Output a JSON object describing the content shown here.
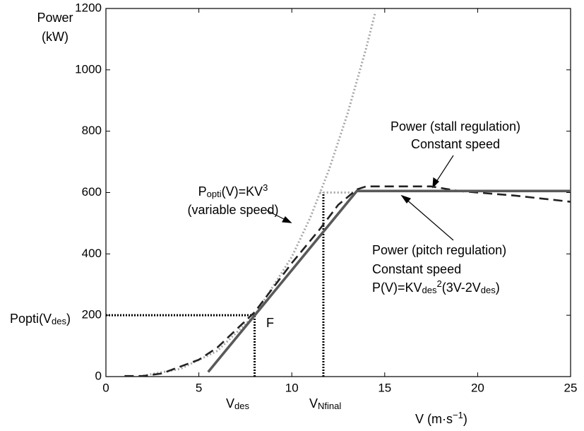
{
  "chart_data": {
    "type": "line",
    "ylabel": [
      "Power",
      "(kW)"
    ],
    "xlabel": [
      {
        "text": "V (m·s"
      },
      {
        "text": "−1",
        "shift": "sup"
      },
      {
        "text": ")"
      }
    ],
    "xlim": [
      0,
      25
    ],
    "xticks": [
      0,
      5,
      10,
      15,
      20,
      25
    ],
    "ylim": [
      0,
      1200
    ],
    "yticks": [
      0,
      200,
      400,
      600,
      800,
      1000,
      1200
    ],
    "series": [
      {
        "color": "#a6a6a6",
        "style": "dotted",
        "x": [
          2,
          4,
          6,
          8,
          10,
          11,
          12,
          13,
          14,
          14.5
        ],
        "values": [
          3,
          25,
          84,
          200,
          390,
          519,
          674,
          857,
          1070,
          1189
        ]
      },
      {
        "color": "#a6a6a6",
        "style": "dotted",
        "x": [
          11.5,
          13.5
        ],
        "values": [
          600,
          600
        ]
      },
      {
        "color": "#222222",
        "style": "dashed",
        "x": [
          1,
          2,
          3,
          5,
          6,
          8,
          10,
          11.5,
          12.5,
          13.5,
          14,
          17.5,
          19,
          22,
          25
        ],
        "values": [
          2,
          2,
          10,
          55,
          95,
          210,
          370,
          480,
          560,
          610,
          620,
          620,
          605,
          590,
          570
        ]
      },
      {
        "color": "#595959",
        "style": "solid",
        "x": [
          5.5,
          13.5,
          25
        ],
        "values": [
          15,
          605,
          605
        ]
      }
    ],
    "reference_lines": [
      {
        "color": "#000000",
        "x": [
          0,
          8
        ],
        "values": [
          200,
          200
        ]
      },
      {
        "color": "#000000",
        "x": [
          8,
          8
        ],
        "values": [
          0,
          200
        ]
      },
      {
        "color": "#000000",
        "x": [
          11.7,
          11.7
        ],
        "values": [
          0,
          600
        ]
      }
    ],
    "annotations": [
      [
        {
          "text": "P"
        },
        {
          "text": "opti",
          "shift": "sub"
        },
        {
          "text": "(V)=KV"
        },
        {
          "text": "3",
          "shift": "sup"
        }
      ],
      [
        {
          "text": "(variable speed)"
        }
      ],
      [
        {
          "text": "Power (stall regulation)"
        }
      ],
      [
        {
          "text": "Constant speed"
        }
      ],
      [
        {
          "text": "Power (pitch regulation)"
        }
      ],
      [
        {
          "text": "Constant speed"
        }
      ],
      [
        {
          "text": "P(V)=KV"
        },
        {
          "text": "des",
          "shift": "sub"
        },
        {
          "text": "2",
          "shift": "sup"
        },
        {
          "text": "(3V-2V"
        },
        {
          "text": "des",
          "shift": "sub"
        },
        {
          "text": ")"
        }
      ],
      [
        {
          "text": "F"
        }
      ],
      [
        {
          "text": "V"
        },
        {
          "text": "des",
          "shift": "sub"
        }
      ],
      [
        {
          "text": "V"
        },
        {
          "text": "Nfinal",
          "shift": "sub"
        }
      ],
      [
        {
          "text": "Popti(V"
        },
        {
          "text": "des",
          "shift": "sub"
        },
        {
          "text": ")"
        }
      ]
    ]
  }
}
